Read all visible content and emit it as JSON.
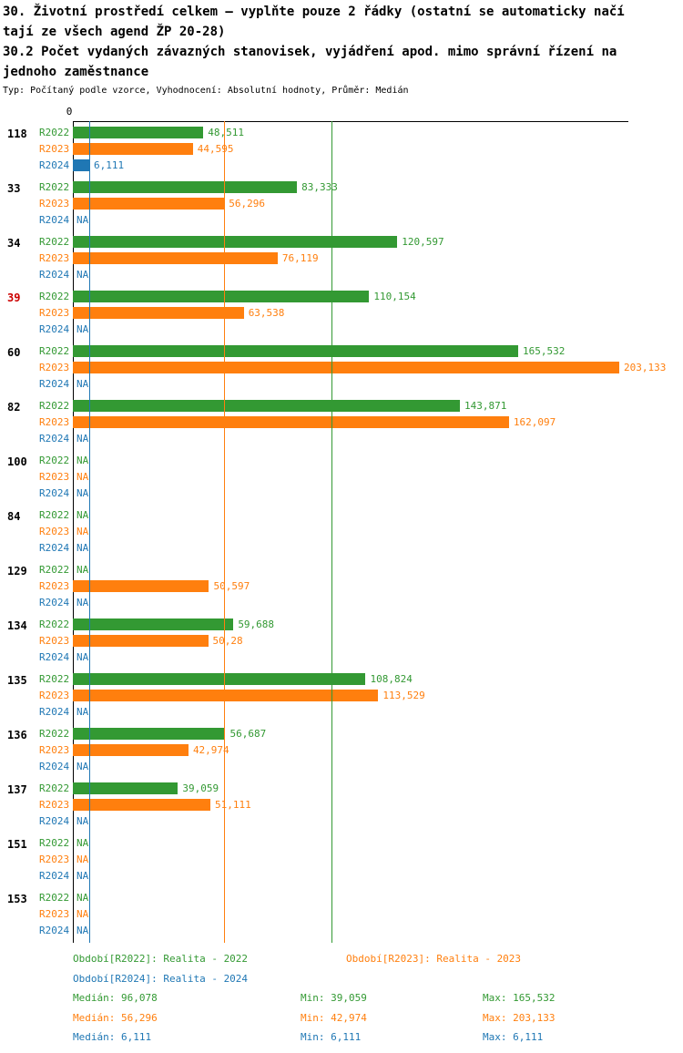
{
  "header": {
    "title_lines": [
      "30. Životní prostředí celkem – vyplňte pouze 2 řádky (ostatní se automaticky načí",
      "tají ze všech agend ŽP 20-28)",
      "30.2 Počet vydaných závazných stanovisek, vyjádření apod. mimo správní řízení na",
      "jednoho zaměstnance"
    ],
    "meta_line": "Typ: Počítaný podle vzorce, Vyhodnocení: Absolutní hodnoty, Průměr: Medián"
  },
  "chart_data": {
    "type": "bar",
    "orientation": "horizontal",
    "title": "30.2 Počet vydaných závazných stanovisek, vyjádření apod. mimo správní řízení na jednoho zaměstnance",
    "axis_zero_label": "0",
    "axis_max": 206.5,
    "xlim": [
      0,
      206.5
    ],
    "na_label": "NA",
    "decimal_style": "czech-comma",
    "series": [
      {
        "key": "R2022",
        "name": "Realita - 2022",
        "color": "#339933"
      },
      {
        "key": "R2023",
        "name": "Realita - 2023",
        "color": "#FF7F0E"
      },
      {
        "key": "R2024",
        "name": "Realita - 2024",
        "color": "#1F77B4"
      }
    ],
    "groups": [
      {
        "id": "118",
        "id_color": "#000000",
        "bars": [
          {
            "label": "48,511",
            "value": 48.511
          },
          {
            "label": "44,595",
            "value": 44.595
          },
          {
            "label": "6,111",
            "value": 6.111
          }
        ]
      },
      {
        "id": "33",
        "id_color": "#000000",
        "bars": [
          {
            "label": "83,333",
            "value": 83.333
          },
          {
            "label": "56,296",
            "value": 56.296
          },
          {
            "label": "NA",
            "value": null
          }
        ]
      },
      {
        "id": "34",
        "id_color": "#000000",
        "bars": [
          {
            "label": "120,597",
            "value": 120.597
          },
          {
            "label": "76,119",
            "value": 76.119
          },
          {
            "label": "NA",
            "value": null
          }
        ]
      },
      {
        "id": "39",
        "id_color": "#CC0000",
        "bars": [
          {
            "label": "110,154",
            "value": 110.154
          },
          {
            "label": "63,538",
            "value": 63.538
          },
          {
            "label": "NA",
            "value": null
          }
        ]
      },
      {
        "id": "60",
        "id_color": "#000000",
        "bars": [
          {
            "label": "165,532",
            "value": 165.532
          },
          {
            "label": "203,133",
            "value": 203.133
          },
          {
            "label": "NA",
            "value": null
          }
        ]
      },
      {
        "id": "82",
        "id_color": "#000000",
        "bars": [
          {
            "label": "143,871",
            "value": 143.871
          },
          {
            "label": "162,097",
            "value": 162.097
          },
          {
            "label": "NA",
            "value": null
          }
        ]
      },
      {
        "id": "100",
        "id_color": "#000000",
        "bars": [
          {
            "label": "NA",
            "value": null
          },
          {
            "label": "NA",
            "value": null
          },
          {
            "label": "NA",
            "value": null
          }
        ]
      },
      {
        "id": "84",
        "id_color": "#000000",
        "bars": [
          {
            "label": "NA",
            "value": null
          },
          {
            "label": "NA",
            "value": null
          },
          {
            "label": "NA",
            "value": null
          }
        ]
      },
      {
        "id": "129",
        "id_color": "#000000",
        "bars": [
          {
            "label": "NA",
            "value": null
          },
          {
            "label": "50,597",
            "value": 50.597
          },
          {
            "label": "NA",
            "value": null
          }
        ]
      },
      {
        "id": "134",
        "id_color": "#000000",
        "bars": [
          {
            "label": "59,688",
            "value": 59.688
          },
          {
            "label": "50,28",
            "value": 50.28
          },
          {
            "label": "NA",
            "value": null
          }
        ]
      },
      {
        "id": "135",
        "id_color": "#000000",
        "bars": [
          {
            "label": "108,824",
            "value": 108.824
          },
          {
            "label": "113,529",
            "value": 113.529
          },
          {
            "label": "NA",
            "value": null
          }
        ]
      },
      {
        "id": "136",
        "id_color": "#000000",
        "bars": [
          {
            "label": "56,687",
            "value": 56.687
          },
          {
            "label": "42,974",
            "value": 42.974
          },
          {
            "label": "NA",
            "value": null
          }
        ]
      },
      {
        "id": "137",
        "id_color": "#000000",
        "bars": [
          {
            "label": "39,059",
            "value": 39.059
          },
          {
            "label": "51,111",
            "value": 51.111
          },
          {
            "label": "NA",
            "value": null
          }
        ]
      },
      {
        "id": "151",
        "id_color": "#000000",
        "bars": [
          {
            "label": "NA",
            "value": null
          },
          {
            "label": "NA",
            "value": null
          },
          {
            "label": "NA",
            "value": null
          }
        ]
      },
      {
        "id": "153",
        "id_color": "#000000",
        "bars": [
          {
            "label": "NA",
            "value": null
          },
          {
            "label": "NA",
            "value": null
          },
          {
            "label": "NA",
            "value": null
          }
        ]
      }
    ],
    "median_lines": [
      {
        "series": "R2022",
        "value": 96.078,
        "color": "#339933"
      },
      {
        "series": "R2023",
        "value": 56.296,
        "color": "#FF7F0E"
      },
      {
        "series": "R2024",
        "value": 6.111,
        "color": "#1F77B4"
      }
    ],
    "stats": {
      "R2022": {
        "median": "96,078",
        "min": "39,059",
        "max": "165,532"
      },
      "R2023": {
        "median": "56,296",
        "min": "42,974",
        "max": "203,133"
      },
      "R2024": {
        "median": "6,111",
        "min": "6,111",
        "max": "6,111"
      }
    }
  },
  "legend": {
    "periods": [
      {
        "text": "Období[R2022]: Realita - 2022",
        "color": "#339933"
      },
      {
        "text": "Období[R2023]: Realita - 2023",
        "color": "#FF7F0E"
      },
      {
        "text": "Období[R2024]: Realita - 2024",
        "color": "#1F77B4"
      }
    ],
    "stats": [
      {
        "median": "Medián: 96,078",
        "min": "Min: 39,059",
        "max": "Max: 165,532",
        "color": "#339933"
      },
      {
        "median": "Medián: 56,296",
        "min": "Min: 42,974",
        "max": "Max: 203,133",
        "color": "#FF7F0E"
      },
      {
        "median": "Medián: 6,111",
        "min": "Min: 6,111",
        "max": "Max: 6,111",
        "color": "#1F77B4"
      }
    ]
  }
}
